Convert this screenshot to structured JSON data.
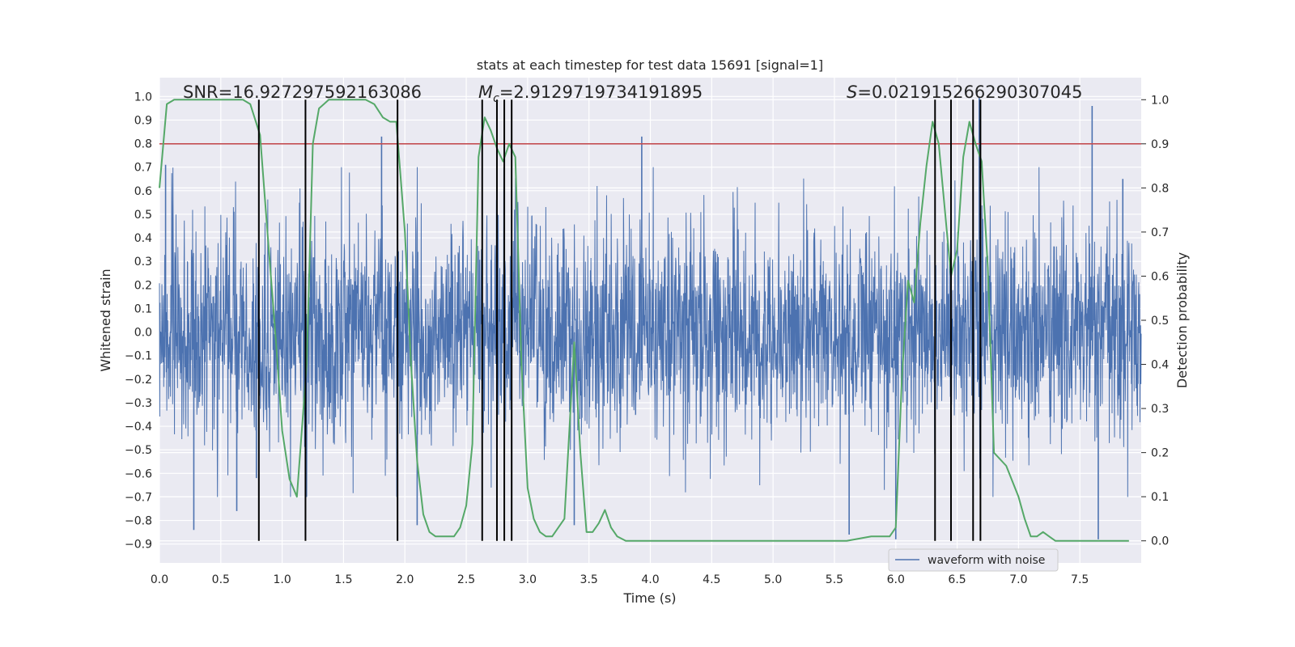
{
  "chart_data": {
    "type": "line",
    "title": "stats at each timestep for test data 15691 [signal=1]",
    "xlabel": "Time (s)",
    "ylabel_left": "Whitened strain",
    "ylabel_right": "Detection probability",
    "xlim": [
      0,
      8
    ],
    "ylim_left": [
      -0.98,
      1.08
    ],
    "ylim_right": [
      -0.05,
      1.05
    ],
    "x_ticks": [
      "0.0",
      "0.5",
      "1.0",
      "1.5",
      "2.0",
      "2.5",
      "3.0",
      "3.5",
      "4.0",
      "4.5",
      "5.0",
      "5.5",
      "6.0",
      "6.5",
      "7.0",
      "7.5"
    ],
    "y_ticks_left": [
      "-0.9",
      "-0.8",
      "-0.7",
      "-0.6",
      "-0.5",
      "-0.4",
      "-0.3",
      "-0.2",
      "-0.1",
      "0.0",
      "0.1",
      "0.2",
      "0.3",
      "0.4",
      "0.5",
      "0.6",
      "0.7",
      "0.8",
      "0.9",
      "1.0"
    ],
    "y_ticks_right": [
      "0.0",
      "0.1",
      "0.2",
      "0.3",
      "0.4",
      "0.5",
      "0.6",
      "0.7",
      "0.8",
      "0.9",
      "1.0"
    ],
    "annotations": {
      "snr": "SNR=16.927297592163086",
      "mc_symbol": "M",
      "mc_sub": "c",
      "mc_value": "=2.9129719734191895",
      "s_symbol": "S",
      "s_value": "=0.021915266290307045"
    },
    "threshold": 0.9,
    "threshold_color": "#c44e52",
    "waveform_color": "#4c72b0",
    "probability_color": "#55a868",
    "series": [
      {
        "name": "waveform with noise",
        "axis": "left",
        "amplitude_typical": 0.45,
        "spike_peaks": [
          {
            "x": 0.05,
            "y": 0.71
          },
          {
            "x": 0.28,
            "y": -0.84
          },
          {
            "x": 0.63,
            "y": -0.76
          },
          {
            "x": 0.79,
            "y": -0.62
          },
          {
            "x": 1.19,
            "y": -0.79
          },
          {
            "x": 1.81,
            "y": 0.83
          },
          {
            "x": 2.1,
            "y": -0.82
          },
          {
            "x": 3.38,
            "y": -0.82
          },
          {
            "x": 3.93,
            "y": 0.83
          },
          {
            "x": 5.62,
            "y": -0.86
          },
          {
            "x": 6.0,
            "y": -0.88
          },
          {
            "x": 6.68,
            "y": 1.0
          },
          {
            "x": 7.6,
            "y": 0.96
          },
          {
            "x": 7.65,
            "y": -0.88
          },
          {
            "x": 7.85,
            "y": 0.65
          }
        ]
      },
      {
        "name": "detection probability",
        "axis": "right",
        "x": [
          0.0,
          0.06,
          0.12,
          0.2,
          0.3,
          0.4,
          0.5,
          0.6,
          0.68,
          0.74,
          0.82,
          0.88,
          0.95,
          1.0,
          1.06,
          1.12,
          1.2,
          1.25,
          1.3,
          1.38,
          1.45,
          1.52,
          1.6,
          1.68,
          1.75,
          1.82,
          1.88,
          1.93,
          2.0,
          2.05,
          2.1,
          2.15,
          2.2,
          2.25,
          2.3,
          2.4,
          2.45,
          2.5,
          2.55,
          2.6,
          2.65,
          2.7,
          2.75,
          2.8,
          2.85,
          2.9,
          2.95,
          3.0,
          3.05,
          3.1,
          3.15,
          3.2,
          3.3,
          3.38,
          3.43,
          3.48,
          3.53,
          3.58,
          3.63,
          3.68,
          3.73,
          3.8,
          4.0,
          4.2,
          4.4,
          4.6,
          4.8,
          5.0,
          5.2,
          5.4,
          5.6,
          5.8,
          5.95,
          6.0,
          6.05,
          6.1,
          6.15,
          6.2,
          6.25,
          6.3,
          6.35,
          6.4,
          6.45,
          6.5,
          6.55,
          6.6,
          6.65,
          6.7,
          6.75,
          6.8,
          6.9,
          7.0,
          7.05,
          7.1,
          7.15,
          7.2,
          7.25,
          7.3,
          7.4,
          7.5,
          7.6,
          7.7,
          7.8,
          7.9
        ],
        "values": [
          0.8,
          0.99,
          1.0,
          1.0,
          1.0,
          1.0,
          1.0,
          1.0,
          1.0,
          0.99,
          0.92,
          0.7,
          0.45,
          0.25,
          0.14,
          0.1,
          0.4,
          0.9,
          0.98,
          1.0,
          1.0,
          1.0,
          1.0,
          1.0,
          0.99,
          0.96,
          0.95,
          0.95,
          0.7,
          0.4,
          0.18,
          0.06,
          0.02,
          0.01,
          0.01,
          0.01,
          0.03,
          0.08,
          0.22,
          0.87,
          0.96,
          0.93,
          0.89,
          0.86,
          0.9,
          0.87,
          0.4,
          0.12,
          0.05,
          0.02,
          0.01,
          0.01,
          0.05,
          0.45,
          0.2,
          0.02,
          0.02,
          0.04,
          0.07,
          0.03,
          0.01,
          0.0,
          0.0,
          0.0,
          0.0,
          0.0,
          0.0,
          0.0,
          0.0,
          0.0,
          0.0,
          0.01,
          0.01,
          0.03,
          0.37,
          0.59,
          0.54,
          0.72,
          0.85,
          0.95,
          0.9,
          0.75,
          0.6,
          0.66,
          0.87,
          0.95,
          0.9,
          0.86,
          0.62,
          0.2,
          0.17,
          0.1,
          0.05,
          0.01,
          0.01,
          0.02,
          0.01,
          0.0,
          0.0,
          0.0,
          0.0,
          0.0,
          0.0,
          0.0
        ]
      }
    ],
    "event_markers_x": [
      0.81,
      1.19,
      1.94,
      2.63,
      2.75,
      2.81,
      2.87,
      6.32,
      6.45,
      6.63,
      6.69
    ],
    "legend": {
      "label": "waveform with noise",
      "position": "lower-right"
    }
  }
}
